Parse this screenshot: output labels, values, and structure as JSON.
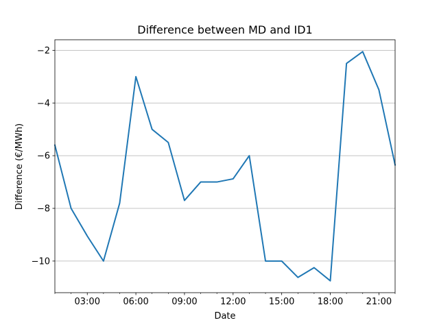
{
  "chart_data": {
    "type": "line",
    "title": "Difference between MD and ID1",
    "xlabel": "Date",
    "ylabel": "Difference (€/MWh)",
    "x_hours": [
      1,
      2,
      3,
      4,
      5,
      6,
      7,
      8,
      9,
      10,
      11,
      12,
      13,
      14,
      15,
      16,
      17,
      18,
      19,
      20,
      21,
      22
    ],
    "series": [
      {
        "name": "Difference",
        "color": "#1f77b4",
        "values": [
          -5.6,
          -8.0,
          -9.05,
          -10.0,
          -7.8,
          -3.0,
          -5.0,
          -5.5,
          -7.7,
          -7.0,
          -7.0,
          -6.88,
          -6.0,
          -10.0,
          -10.0,
          -10.62,
          -10.25,
          -10.75,
          -2.5,
          -2.05,
          -3.5,
          -6.35
        ]
      }
    ],
    "xlim": [
      1,
      22
    ],
    "ylim": [
      -11.2,
      -1.6
    ],
    "xticks": [
      {
        "value": 3,
        "label": "03:00"
      },
      {
        "value": 6,
        "label": "06:00"
      },
      {
        "value": 9,
        "label": "09:00"
      },
      {
        "value": 12,
        "label": "12:00"
      },
      {
        "value": 15,
        "label": "15:00"
      },
      {
        "value": 18,
        "label": "18:00"
      },
      {
        "value": 21,
        "label": "21:00"
      }
    ],
    "minor_xticks": [
      1,
      2,
      4,
      5,
      7,
      8,
      10,
      11,
      13,
      14,
      16,
      17,
      19,
      20,
      22
    ],
    "yticks": [
      {
        "value": -2,
        "label": "−2"
      },
      {
        "value": -4,
        "label": "−4"
      },
      {
        "value": -6,
        "label": "−6"
      },
      {
        "value": -8,
        "label": "−8"
      },
      {
        "value": -10,
        "label": "−10"
      }
    ],
    "grid": "y-major"
  }
}
